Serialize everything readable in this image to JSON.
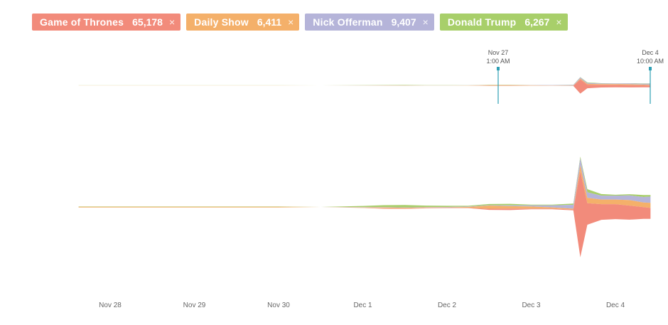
{
  "legend": [
    {
      "name": "Game of Thrones",
      "count": "65,178",
      "close": "×",
      "color": "#f28b7b"
    },
    {
      "name": "Daily Show",
      "count": "6,411",
      "close": "×",
      "color": "#f4b06a"
    },
    {
      "name": "Nick Offerman",
      "count": "9,407",
      "close": "×",
      "color": "#b5b4d9"
    },
    {
      "name": "Donald Trump",
      "count": "6,267",
      "close": "×",
      "color": "#a8cf6a"
    }
  ],
  "markers": [
    {
      "date": "Nov 27",
      "time": "1:00 AM"
    },
    {
      "date": "Dec 4",
      "time": "10:00 AM"
    }
  ],
  "chart_data": {
    "type": "area",
    "layout": "streamgraph",
    "series_order": [
      "Donald Trump",
      "Nick Offerman",
      "Daily Show",
      "Game of Thrones"
    ],
    "x_tick_labels": [
      "Nov 28",
      "Nov 29",
      "Nov 30",
      "Dec 1",
      "Dec 2",
      "Dec 3",
      "Dec 4"
    ],
    "x": [
      "Nov 27 15:00",
      "Nov 28 00:00",
      "Nov 28 12:00",
      "Nov 29 00:00",
      "Nov 29 12:00",
      "Nov 30 00:00",
      "Nov 30 12:00",
      "Dec 1 00:00",
      "Dec 1 06:00",
      "Dec 1 12:00",
      "Dec 1 18:00",
      "Dec 2 00:00",
      "Dec 2 06:00",
      "Dec 2 12:00",
      "Dec 2 18:00",
      "Dec 3 00:00",
      "Dec 3 06:00",
      "Dec 3 12:00",
      "Dec 3 14:00",
      "Dec 3 16:00",
      "Dec 3 20:00",
      "Dec 4 00:00",
      "Dec 4 04:00",
      "Dec 4 08:00",
      "Dec 4 10:00"
    ],
    "series": [
      {
        "name": "Donald Trump",
        "color": "#a8cf6a",
        "values": [
          1,
          1,
          1,
          1,
          1,
          1,
          0,
          3,
          5,
          6,
          4,
          3,
          2,
          3,
          4,
          2,
          2,
          3,
          4,
          8,
          4,
          2,
          3,
          5,
          4
        ]
      },
      {
        "name": "Nick Offerman",
        "color": "#b5b4d9",
        "values": [
          0,
          0,
          0,
          0,
          0,
          0,
          0,
          1,
          1,
          1,
          1,
          1,
          1,
          1,
          2,
          3,
          5,
          10,
          18,
          14,
          10,
          10,
          12,
          14,
          16
        ]
      },
      {
        "name": "Daily Show",
        "color": "#f4b06a",
        "values": [
          2,
          2,
          2,
          2,
          2,
          2,
          0,
          1,
          2,
          2,
          1,
          1,
          2,
          8,
          6,
          5,
          3,
          2,
          15,
          14,
          12,
          12,
          14,
          12,
          13
        ]
      },
      {
        "name": "Game of Thrones",
        "color": "#f28b7b",
        "values": [
          0,
          0,
          0,
          0,
          0,
          0,
          0,
          0,
          1,
          1,
          1,
          1,
          1,
          3,
          4,
          2,
          2,
          2,
          220,
          55,
          40,
          38,
          36,
          30,
          28
        ]
      }
    ],
    "grid": false
  }
}
